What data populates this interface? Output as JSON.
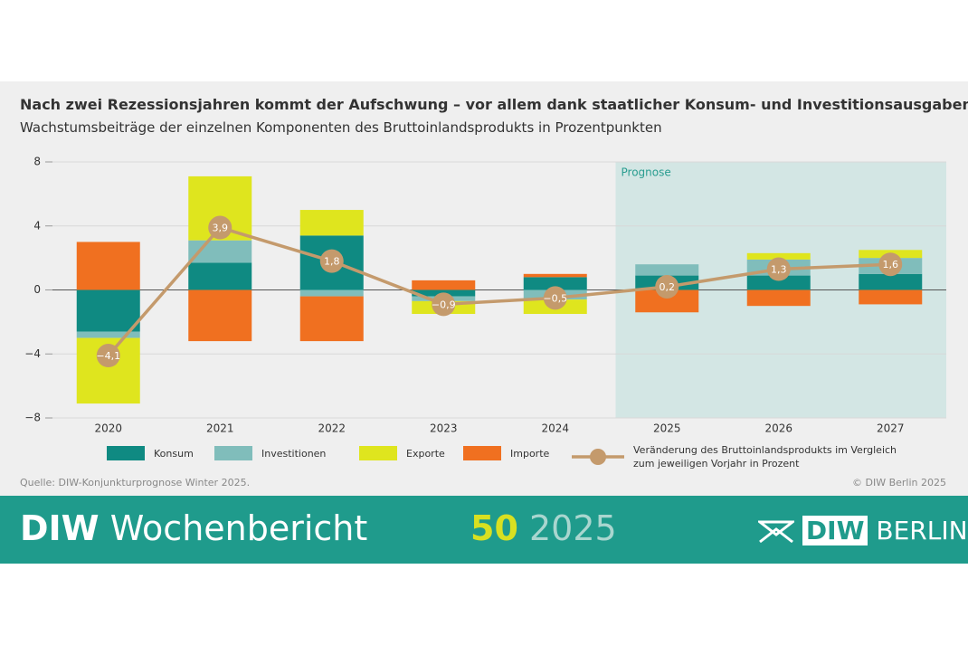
{
  "chart_data": {
    "type": "bar",
    "title": "Nach zwei Rezessionsjahren kommt der Aufschwung – vor allem dank staatlicher Konsum- und Investitionsausgaben",
    "subtitle": "Wachstumsbeiträge der einzelnen Komponenten des Bruttoinlandsprodukts in Prozentpunkten",
    "categories": [
      "2020",
      "2021",
      "2022",
      "2023",
      "2024",
      "2025",
      "2026",
      "2027"
    ],
    "series": [
      {
        "name": "Konsum",
        "color": "#0f8a82",
        "values": [
          -2.6,
          1.7,
          3.4,
          -0.4,
          0.8,
          0.9,
          0.9,
          1.0
        ]
      },
      {
        "name": "Investitionen",
        "color": "#80bdbb",
        "values": [
          -0.4,
          1.4,
          -0.4,
          -0.3,
          -0.6,
          0.7,
          1.0,
          1.0
        ]
      },
      {
        "name": "Exporte",
        "color": "#dfe51e",
        "values": [
          -4.1,
          4.0,
          1.6,
          -0.8,
          -0.9,
          0,
          0.4,
          0.5
        ]
      },
      {
        "name": "Importe",
        "color": "#f07020",
        "values": [
          3.0,
          -3.2,
          -2.8,
          0.6,
          0.2,
          -1.4,
          -1.0,
          -0.9
        ]
      },
      {
        "name": "Veränderung des Bruttoinlandsprodukts im Vergleich zum jeweiligen Vorjahr in Prozent",
        "type": "line",
        "color": "#c49a6c",
        "values": [
          -4.1,
          3.9,
          1.8,
          -0.9,
          -0.5,
          0.2,
          1.3,
          1.6
        ],
        "value_labels": [
          "−4,1",
          "3,9",
          "1,8",
          "−0,9",
          "−0,5",
          "0,2",
          "1,3",
          "1,6"
        ]
      }
    ],
    "ylim": [
      -8,
      8
    ],
    "yticks": [
      {
        "value": -8,
        "label": "−8"
      },
      {
        "value": -4,
        "label": "−4"
      },
      0,
      4,
      8
    ],
    "grid": true,
    "forecast": {
      "label": "Prognose",
      "from": "2025"
    },
    "source": "Quelle: DIW-Konjunkturprognose Winter 2025.",
    "copyright": "© DIW Berlin 2025"
  },
  "banner": {
    "publication": "DIW Wochenbericht",
    "issue": "50",
    "year": "2025",
    "logo_mark": "DIW",
    "logo_text": "BERLIN"
  }
}
